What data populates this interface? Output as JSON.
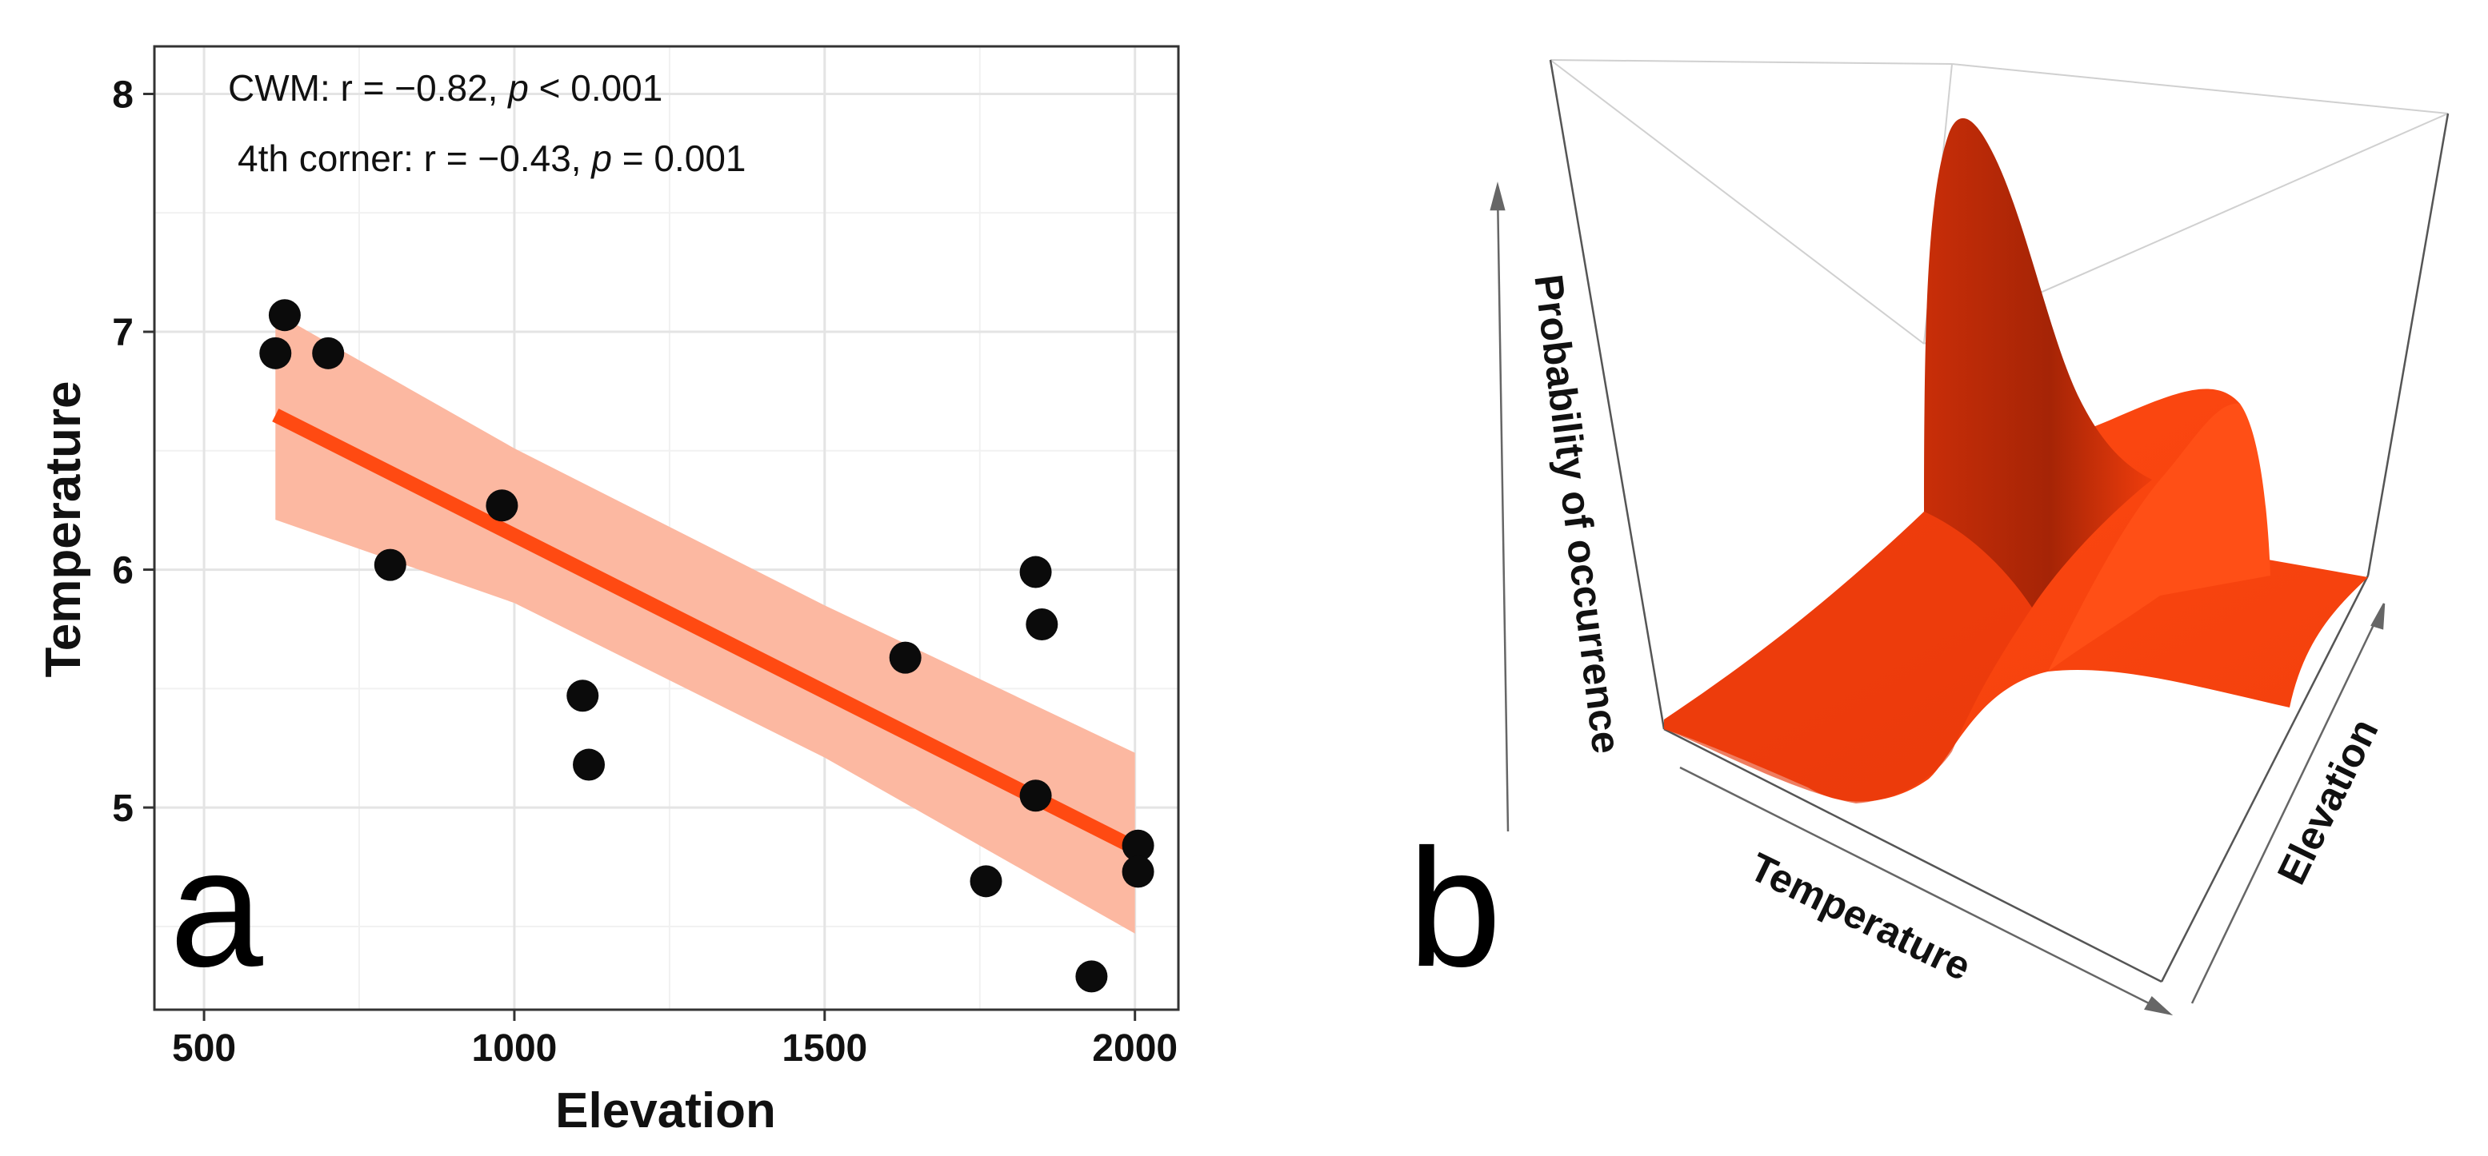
{
  "chart_data": [
    {
      "type": "scatter",
      "panel_label": "a",
      "xlabel": "Elevation",
      "ylabel": "Temperature",
      "xlim": [
        420,
        2070
      ],
      "ylim": [
        4.15,
        8.2
      ],
      "xticks": [
        500,
        1000,
        1500,
        2000
      ],
      "yticks": [
        5,
        6,
        7,
        8
      ],
      "grid": true,
      "points": [
        {
          "x": 630,
          "y": 7.07
        },
        {
          "x": 615,
          "y": 6.91
        },
        {
          "x": 700,
          "y": 6.91
        },
        {
          "x": 800,
          "y": 6.02
        },
        {
          "x": 980,
          "y": 6.27
        },
        {
          "x": 1110,
          "y": 5.47
        },
        {
          "x": 1120,
          "y": 5.18
        },
        {
          "x": 1630,
          "y": 5.63
        },
        {
          "x": 1840,
          "y": 5.99
        },
        {
          "x": 1850,
          "y": 5.77
        },
        {
          "x": 1840,
          "y": 5.05
        },
        {
          "x": 1760,
          "y": 4.69
        },
        {
          "x": 2005,
          "y": 4.84
        },
        {
          "x": 2005,
          "y": 4.73
        },
        {
          "x": 1930,
          "y": 4.29
        }
      ],
      "regression": {
        "x": [
          615,
          2000
        ],
        "y": [
          6.65,
          4.83
        ],
        "color": "#ff4a12"
      },
      "confidence_band": {
        "x": [
          615,
          1000,
          1500,
          2000
        ],
        "upper": [
          7.08,
          6.51,
          5.85,
          5.23
        ],
        "lower": [
          6.21,
          5.86,
          5.21,
          4.47
        ],
        "color": "#fcb8a1"
      },
      "annotations": [
        {
          "label": "CWM: r = −0.82, ",
          "p_symbol": "p",
          "tail": " < 0.001"
        },
        {
          "label": "4th corner: r = −0.43, ",
          "p_symbol": "p",
          "tail": " = 0.001"
        }
      ]
    },
    {
      "type": "surface3d",
      "panel_label": "b",
      "zlabel": "Probability of occurrence",
      "xlabel": "Temperature",
      "ylabel": "Elevation",
      "surface_color": "#ff4a12"
    }
  ]
}
